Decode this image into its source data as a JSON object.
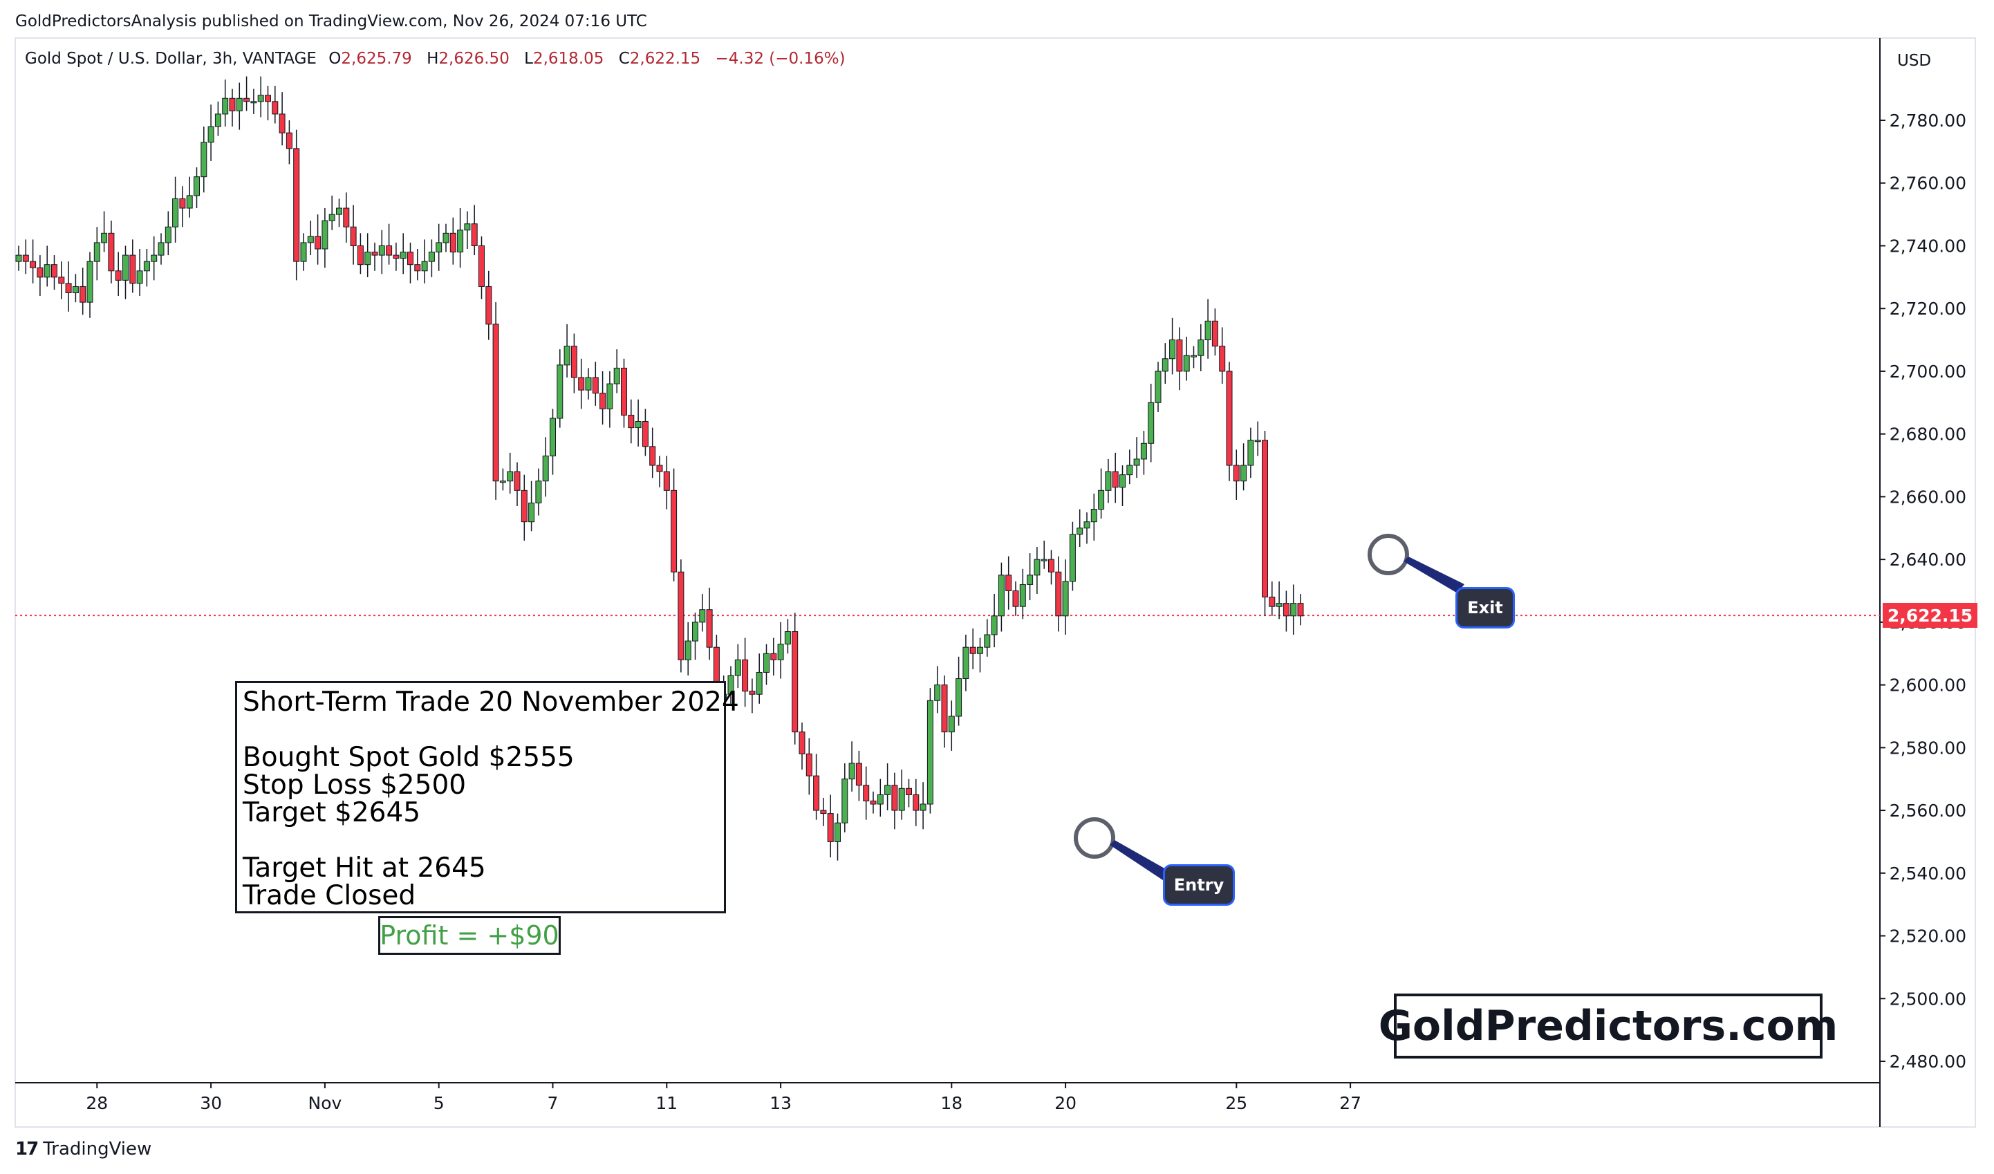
{
  "publisher_line": "GoldPredictorsAnalysis published on TradingView.com, Nov 26, 2024 07:16 UTC",
  "instrument": {
    "name": "Gold Spot / U.S. Dollar, 3h, VANTAGE",
    "open_label": "O",
    "open": "2,625.79",
    "high_label": "H",
    "high": "2,626.50",
    "low_label": "L",
    "low": "2,618.05",
    "close_label": "C",
    "close": "2,622.15",
    "change": "−4.32 (−0.16%)"
  },
  "currency": "USD",
  "last_price_label": "2,622.15",
  "trade_box": {
    "title": "Short-Term Trade 20 November 2024",
    "line1": "Bought Spot Gold $2555",
    "line2": "Stop Loss $2500",
    "line3": "Target $2645",
    "line4": "Target Hit at 2645",
    "line5": "Trade Closed"
  },
  "profit": "Profit = +$90",
  "brand": "GoldPredictors.com",
  "entry_label": "Entry",
  "exit_label": "Exit",
  "footer_brand": "TradingView",
  "colors": {
    "up": "#4caf50",
    "down": "#f23645",
    "wick": "#131722",
    "profit": "#43a047",
    "pill_border": "#2962ff"
  },
  "chart_data": {
    "type": "candlestick",
    "title": "",
    "xlabel": "",
    "ylabel": "",
    "ylim": [
      2470,
      2800
    ],
    "y_ticks": [
      "2,480.00",
      "2,500.00",
      "2,520.00",
      "2,540.00",
      "2,560.00",
      "2,580.00",
      "2,600.00",
      "2,620.00",
      "2,640.00",
      "2,660.00",
      "2,680.00",
      "2,700.00",
      "2,720.00",
      "2,740.00",
      "2,760.00",
      "2,780.00"
    ],
    "x_ticks": [
      {
        "label": "28",
        "index": 11
      },
      {
        "label": "30",
        "index": 27
      },
      {
        "label": "Nov",
        "index": 43
      },
      {
        "label": "5",
        "index": 59
      },
      {
        "label": "7",
        "index": 75
      },
      {
        "label": "11",
        "index": 91
      },
      {
        "label": "13",
        "index": 107
      },
      {
        "label": "18",
        "index": 131
      },
      {
        "label": "20",
        "index": 147
      },
      {
        "label": "25",
        "index": 171
      },
      {
        "label": "27",
        "index": 187
      }
    ],
    "last_price": 2622.15,
    "closes": [
      2737,
      2735,
      2733,
      2730,
      2734,
      2730,
      2728,
      2725,
      2727,
      2722,
      2735,
      2741,
      2744,
      2732,
      2729,
      2737,
      2728,
      2732,
      2735,
      2737,
      2741,
      2746,
      2755,
      2752,
      2756,
      2762,
      2773,
      2778,
      2782,
      2787,
      2783,
      2787,
      2786,
      2786,
      2788,
      2786,
      2782,
      2776,
      2771,
      2735,
      2741,
      2743,
      2739,
      2748,
      2750,
      2752,
      2746,
      2740,
      2734,
      2738,
      2737,
      2740,
      2737,
      2736,
      2738,
      2734,
      2732,
      2735,
      2738,
      2741,
      2744,
      2738,
      2745,
      2747,
      2740,
      2727,
      2715,
      2665,
      2665,
      2668,
      2662,
      2652,
      2658,
      2665,
      2673,
      2685,
      2702,
      2708,
      2698,
      2694,
      2698,
      2693,
      2688,
      2696,
      2701,
      2686,
      2682,
      2684,
      2676,
      2670,
      2668,
      2662,
      2636,
      2608,
      2614,
      2620,
      2624,
      2612,
      2595,
      2597,
      2603,
      2608,
      2598,
      2597,
      2604,
      2610,
      2608,
      2613,
      2617,
      2585,
      2578,
      2571,
      2560,
      2559,
      2550,
      2556,
      2570,
      2575,
      2568,
      2563,
      2562,
      2565,
      2568,
      2560,
      2567,
      2565,
      2560,
      2562,
      2595,
      2600,
      2585,
      2590,
      2602,
      2612,
      2610,
      2612,
      2616,
      2622,
      2635,
      2630,
      2625,
      2632,
      2635,
      2640,
      2640,
      2636,
      2622,
      2633,
      2648,
      2650,
      2652,
      2656,
      2662,
      2668,
      2663,
      2667,
      2670,
      2672,
      2677,
      2690,
      2700,
      2704,
      2710,
      2700,
      2705,
      2705,
      2710,
      2716,
      2708,
      2700,
      2670,
      2665,
      2670,
      2678,
      2678,
      2628,
      2625,
      2626,
      2622,
      2626,
      2622
    ],
    "opens": [
      2735,
      2737,
      2735,
      2733,
      2730,
      2734,
      2730,
      2728,
      2725,
      2727,
      2722,
      2735,
      2741,
      2744,
      2732,
      2729,
      2737,
      2728,
      2732,
      2735,
      2737,
      2741,
      2746,
      2755,
      2752,
      2756,
      2762,
      2773,
      2778,
      2782,
      2787,
      2783,
      2787,
      2786,
      2786,
      2788,
      2786,
      2782,
      2776,
      2771,
      2735,
      2741,
      2743,
      2739,
      2748,
      2750,
      2752,
      2746,
      2740,
      2734,
      2738,
      2737,
      2740,
      2737,
      2736,
      2738,
      2734,
      2732,
      2735,
      2738,
      2741,
      2744,
      2738,
      2745,
      2747,
      2740,
      2727,
      2715,
      2665,
      2665,
      2668,
      2662,
      2652,
      2658,
      2665,
      2673,
      2685,
      2702,
      2708,
      2698,
      2694,
      2698,
      2693,
      2688,
      2696,
      2701,
      2686,
      2682,
      2684,
      2676,
      2670,
      2668,
      2662,
      2636,
      2608,
      2614,
      2620,
      2624,
      2612,
      2595,
      2597,
      2603,
      2608,
      2598,
      2597,
      2604,
      2610,
      2608,
      2613,
      2617,
      2585,
      2578,
      2571,
      2560,
      2559,
      2550,
      2556,
      2570,
      2575,
      2568,
      2563,
      2562,
      2565,
      2568,
      2560,
      2567,
      2565,
      2560,
      2562,
      2595,
      2600,
      2585,
      2590,
      2602,
      2612,
      2610,
      2612,
      2616,
      2622,
      2635,
      2630,
      2625,
      2632,
      2635,
      2640,
      2640,
      2636,
      2622,
      2633,
      2648,
      2650,
      2652,
      2656,
      2662,
      2668,
      2663,
      2667,
      2670,
      2672,
      2677,
      2690,
      2700,
      2704,
      2710,
      2700,
      2705,
      2705,
      2710,
      2716,
      2708,
      2700,
      2670,
      2665,
      2670,
      2678,
      2678,
      2628,
      2625,
      2626,
      2622,
      2626
    ]
  }
}
